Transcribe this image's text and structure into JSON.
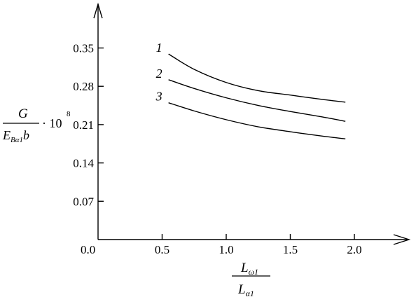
{
  "chart_data": {
    "type": "line",
    "xlim": [
      0,
      2.4
    ],
    "ylim": [
      0,
      0.4
    ],
    "x_ticks": [
      0.5,
      1.0,
      1.5,
      2.0
    ],
    "x_tick_labels": [
      "0.5",
      "1.0",
      "1.5",
      "2.0"
    ],
    "y_ticks": [
      0.07,
      0.14,
      0.21,
      0.28,
      0.35
    ],
    "y_tick_labels": [
      "0.07",
      "0.14",
      "0.21",
      "0.28",
      "0.35"
    ],
    "origin_label": "0.0",
    "grid": false,
    "legend": "none",
    "ylabel": {
      "numerator": "G",
      "denominator_main": "E",
      "denominator_sub": "Bα1",
      "denominator_tail": "b",
      "multiplier": "· 10",
      "exponent": "8"
    },
    "xlabel": {
      "numerator_main": "L",
      "numerator_sub": "ω1",
      "denominator_main": "L",
      "denominator_sub": "α1"
    },
    "series": [
      {
        "label": "1",
        "x": [
          0.55,
          0.75,
          1.0,
          1.25,
          1.5,
          1.75,
          1.93
        ],
        "y": [
          0.339,
          0.311,
          0.287,
          0.272,
          0.264,
          0.256,
          0.251
        ]
      },
      {
        "label": "2",
        "x": [
          0.55,
          0.75,
          1.0,
          1.25,
          1.5,
          1.75,
          1.93
        ],
        "y": [
          0.292,
          0.276,
          0.259,
          0.245,
          0.234,
          0.224,
          0.216
        ]
      },
      {
        "label": "3",
        "x": [
          0.55,
          0.75,
          1.0,
          1.25,
          1.5,
          1.75,
          1.93
        ],
        "y": [
          0.25,
          0.235,
          0.219,
          0.206,
          0.197,
          0.189,
          0.184
        ]
      }
    ]
  }
}
